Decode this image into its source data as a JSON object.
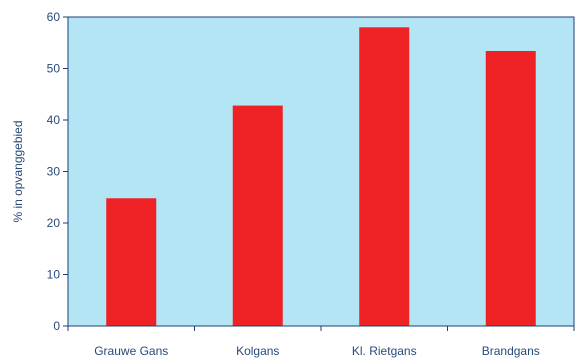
{
  "chart_data": {
    "type": "bar",
    "title": "",
    "xlabel": "",
    "ylabel": "% in opvanggebied",
    "categories": [
      "Grauwe Gans",
      "Kolgans",
      "Kl. Rietgans",
      "Brandgans"
    ],
    "values": [
      24.8,
      42.8,
      58.0,
      53.4
    ],
    "ylim": [
      0,
      60
    ],
    "yticks": [
      0,
      10,
      20,
      30,
      40,
      50,
      60
    ],
    "grid": false,
    "legend": "none",
    "colors": {
      "bar": "#ee2224",
      "plot_background": "#b3e5f5",
      "frame": "#1f3f75",
      "text": "#2a4a7a"
    }
  }
}
